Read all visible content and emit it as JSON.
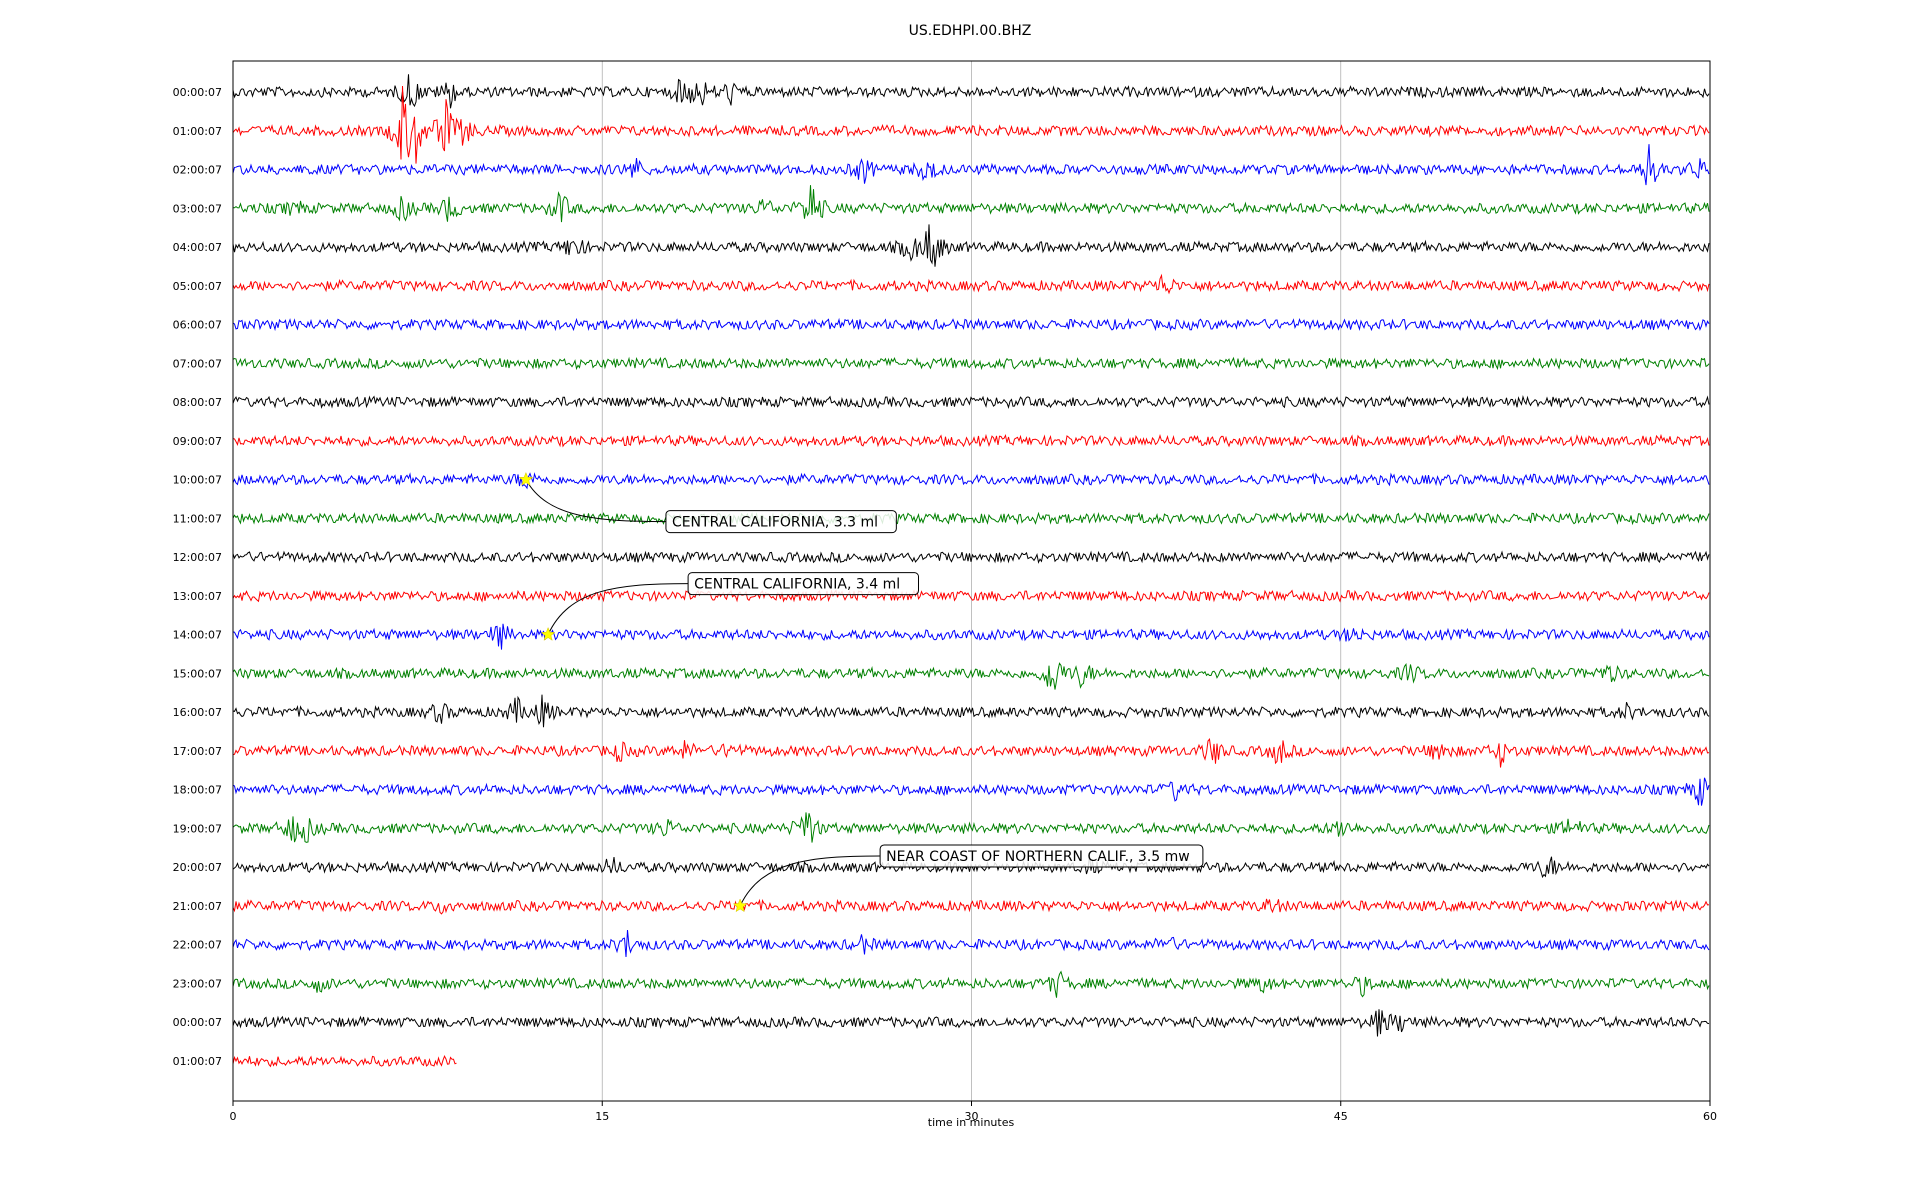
{
  "chart_data": {
    "type": "line",
    "title": "US.EDHPI.00.BHZ",
    "xlabel": "time in minutes",
    "ylabel": "",
    "xlim": [
      0,
      60
    ],
    "x_ticks": [
      0,
      15,
      30,
      45,
      60
    ],
    "grid_x": true,
    "trace_colors": [
      "#000000",
      "#ff0000",
      "#0000ff",
      "#008000"
    ],
    "rows": [
      {
        "label": "00:00:07",
        "duration_min": 60,
        "bursts": [
          {
            "t": 7.2,
            "amp": 2.5
          },
          {
            "t": 8.8,
            "amp": 1.6
          },
          {
            "t": 18.3,
            "amp": 2.0
          },
          {
            "t": 19.0,
            "amp": 1.5
          },
          {
            "t": 20.2,
            "amp": 1.2
          }
        ]
      },
      {
        "label": "01:00:07",
        "duration_min": 60,
        "bursts": [
          {
            "t": 6.9,
            "amp": 5.0
          },
          {
            "t": 7.4,
            "amp": 3.5
          },
          {
            "t": 8.6,
            "amp": 4.0
          },
          {
            "t": 9.4,
            "amp": 1.5
          }
        ]
      },
      {
        "label": "02:00:07",
        "duration_min": 60,
        "bursts": [
          {
            "t": 16.3,
            "amp": 1.3
          },
          {
            "t": 25.6,
            "amp": 1.5
          },
          {
            "t": 28.2,
            "amp": 1.5
          },
          {
            "t": 57.5,
            "amp": 2.7
          },
          {
            "t": 59.5,
            "amp": 1.2
          }
        ]
      },
      {
        "label": "03:00:07",
        "duration_min": 60,
        "bursts": [
          {
            "t": 2.5,
            "amp": 0.8
          },
          {
            "t": 6.9,
            "amp": 1.5
          },
          {
            "t": 8.8,
            "amp": 1.5
          },
          {
            "t": 13.3,
            "amp": 1.8
          },
          {
            "t": 21.6,
            "amp": 1.0
          },
          {
            "t": 23.5,
            "amp": 3.5
          }
        ]
      },
      {
        "label": "04:00:07",
        "duration_min": 60,
        "bursts": [
          {
            "t": 13.8,
            "amp": 1.5
          },
          {
            "t": 27.5,
            "amp": 1.5
          },
          {
            "t": 28.4,
            "amp": 3.8
          }
        ]
      },
      {
        "label": "05:00:07",
        "duration_min": 60,
        "bursts": [
          {
            "t": 37.8,
            "amp": 1.3
          }
        ]
      },
      {
        "label": "06:00:07",
        "duration_min": 60,
        "bursts": []
      },
      {
        "label": "07:00:07",
        "duration_min": 60,
        "bursts": []
      },
      {
        "label": "08:00:07",
        "duration_min": 60,
        "bursts": []
      },
      {
        "label": "09:00:07",
        "duration_min": 60,
        "bursts": []
      },
      {
        "label": "10:00:07",
        "duration_min": 60,
        "bursts": [
          {
            "t": 11.9,
            "amp": 1.0
          }
        ]
      },
      {
        "label": "11:00:07",
        "duration_min": 60,
        "bursts": []
      },
      {
        "label": "12:00:07",
        "duration_min": 60,
        "bursts": []
      },
      {
        "label": "13:00:07",
        "duration_min": 60,
        "bursts": []
      },
      {
        "label": "14:00:07",
        "duration_min": 60,
        "bursts": [
          {
            "t": 10.8,
            "amp": 1.8
          },
          {
            "t": 45.5,
            "amp": 0.8
          }
        ]
      },
      {
        "label": "15:00:07",
        "duration_min": 60,
        "bursts": [
          {
            "t": 33.3,
            "amp": 3.2
          },
          {
            "t": 34.5,
            "amp": 1.5
          },
          {
            "t": 47.8,
            "amp": 1.0
          },
          {
            "t": 55.9,
            "amp": 1.0
          }
        ]
      },
      {
        "label": "16:00:07",
        "duration_min": 60,
        "bursts": [
          {
            "t": 8.4,
            "amp": 1.2
          },
          {
            "t": 11.5,
            "amp": 1.5
          },
          {
            "t": 12.6,
            "amp": 1.7
          },
          {
            "t": 56.6,
            "amp": 0.7
          }
        ]
      },
      {
        "label": "17:00:07",
        "duration_min": 60,
        "bursts": [
          {
            "t": 15.7,
            "amp": 1.0
          },
          {
            "t": 18.4,
            "amp": 1.0
          },
          {
            "t": 20.2,
            "amp": 0.8
          },
          {
            "t": 39.8,
            "amp": 1.8
          },
          {
            "t": 42.5,
            "amp": 1.6
          },
          {
            "t": 49.0,
            "amp": 1.3
          },
          {
            "t": 51.5,
            "amp": 1.4
          }
        ]
      },
      {
        "label": "18:00:07",
        "duration_min": 60,
        "bursts": [
          {
            "t": 38.3,
            "amp": 1.0
          },
          {
            "t": 59.6,
            "amp": 1.8
          }
        ]
      },
      {
        "label": "19:00:07",
        "duration_min": 60,
        "bursts": [
          {
            "t": 2.4,
            "amp": 1.5
          },
          {
            "t": 3.0,
            "amp": 1.2
          },
          {
            "t": 17.6,
            "amp": 1.0
          },
          {
            "t": 23.3,
            "amp": 3.0
          },
          {
            "t": 45.0,
            "amp": 1.2
          },
          {
            "t": 54.4,
            "amp": 1.5
          }
        ]
      },
      {
        "label": "20:00:07",
        "duration_min": 60,
        "bursts": [
          {
            "t": 15.4,
            "amp": 1.0
          },
          {
            "t": 34.8,
            "amp": 0.8
          },
          {
            "t": 53.4,
            "amp": 1.5
          }
        ]
      },
      {
        "label": "21:00:07",
        "duration_min": 60,
        "bursts": [
          {
            "t": 8.6,
            "amp": 0.8
          },
          {
            "t": 42.2,
            "amp": 0.8
          }
        ]
      },
      {
        "label": "22:00:07",
        "duration_min": 60,
        "bursts": [
          {
            "t": 16.0,
            "amp": 1.5
          },
          {
            "t": 25.6,
            "amp": 0.8
          },
          {
            "t": 37.9,
            "amp": 1.0
          }
        ]
      },
      {
        "label": "23:00:07",
        "duration_min": 60,
        "bursts": [
          {
            "t": 3.5,
            "amp": 0.8
          },
          {
            "t": 33.5,
            "amp": 1.5
          },
          {
            "t": 41.8,
            "amp": 0.8
          },
          {
            "t": 45.9,
            "amp": 1.0
          }
        ]
      },
      {
        "label": "00:00:07",
        "duration_min": 60,
        "bursts": [
          {
            "t": 46.6,
            "amp": 1.8
          },
          {
            "t": 47.5,
            "amp": 1.0
          }
        ]
      },
      {
        "label": "01:00:07",
        "duration_min": 9.1,
        "bursts": []
      }
    ],
    "events": [
      {
        "label": "CENTRAL CALIFORNIA, 3.3 ml",
        "row": 10,
        "t": 11.9
      },
      {
        "label": "CENTRAL CALIFORNIA, 3.4 ml",
        "row": 14,
        "t": 12.8
      },
      {
        "label": "NEAR COAST OF NORTHERN CALIF., 3.5 mw",
        "row": 21,
        "t": 20.6
      }
    ],
    "event_marker_color": "#ffff00"
  }
}
